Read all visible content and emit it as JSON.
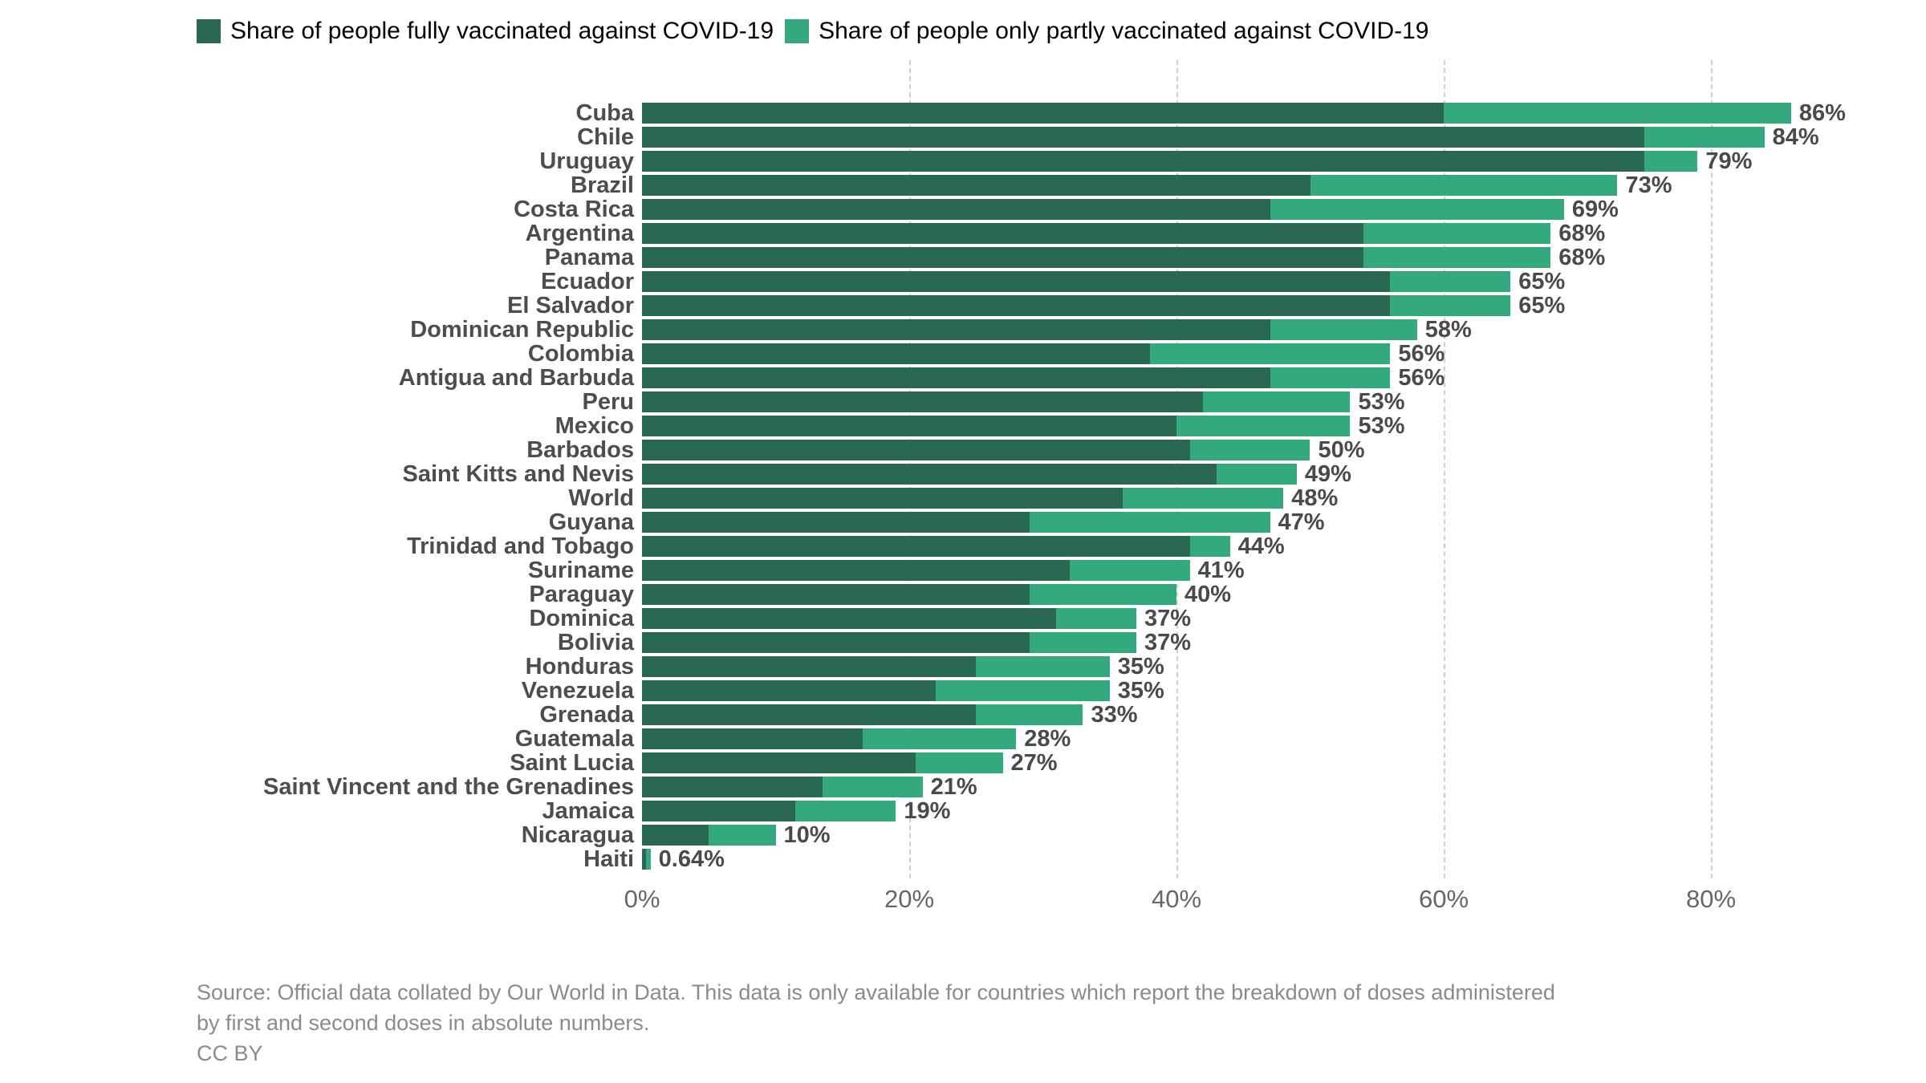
{
  "legend": {
    "fully_label": "Share of people fully vaccinated against COVID-19",
    "partly_label": "Share of people only partly vaccinated against COVID-19"
  },
  "colors": {
    "fully": "#2b6852",
    "partly": "#35a97e",
    "grid": "#cfcfcf",
    "country_label": "#4d4d4d",
    "value_label": "#4a4a4a",
    "axis_label": "#666666",
    "source_text": "#8b8b8b",
    "legend_text": "#000000"
  },
  "axis": {
    "ticks": [
      {
        "value": 0,
        "label": "0%"
      },
      {
        "value": 20,
        "label": "20%"
      },
      {
        "value": 40,
        "label": "40%"
      },
      {
        "value": 60,
        "label": "60%"
      },
      {
        "value": 80,
        "label": "80%"
      }
    ],
    "gridline_values": [
      20,
      40,
      60,
      80
    ]
  },
  "source": {
    "line1": "Source: Official data collated by Our World in Data. This data is only available for countries which report the breakdown of doses administered",
    "line2": "by first and second doses in absolute numbers.",
    "line3": "CC BY"
  },
  "chart_data": {
    "type": "bar",
    "orientation": "horizontal",
    "stacked": true,
    "grid": "dashed-vertical",
    "legend_position": "top",
    "x_range": [
      0,
      96
    ],
    "categories": [
      "Cuba",
      "Chile",
      "Uruguay",
      "Brazil",
      "Costa Rica",
      "Argentina",
      "Panama",
      "Ecuador",
      "El Salvador",
      "Dominican Republic",
      "Colombia",
      "Antigua and Barbuda",
      "Peru",
      "Mexico",
      "Barbados",
      "Saint Kitts and Nevis",
      "World",
      "Guyana",
      "Trinidad and Tobago",
      "Suriname",
      "Paraguay",
      "Dominica",
      "Bolivia",
      "Honduras",
      "Venezuela",
      "Grenada",
      "Guatemala",
      "Saint Lucia",
      "Saint Vincent and the Grenadines",
      "Jamaica",
      "Nicaragua",
      "Haiti"
    ],
    "series": [
      {
        "name": "Share of people fully vaccinated against COVID-19",
        "values": [
          60,
          75,
          75,
          50,
          47,
          54,
          54,
          56,
          56,
          47,
          38,
          47,
          42,
          40,
          41,
          43,
          36,
          29,
          41,
          32,
          29,
          31,
          29,
          25,
          22,
          25,
          16.5,
          20.5,
          13.5,
          11.5,
          5,
          0.3
        ]
      },
      {
        "name": "Share of people only partly vaccinated against COVID-19",
        "values": [
          26,
          9,
          4,
          23,
          22,
          14,
          14,
          9,
          9,
          11,
          18,
          9,
          11,
          13,
          9,
          6,
          12,
          18,
          3,
          9,
          11,
          6,
          8,
          10,
          13,
          8,
          11.5,
          6.5,
          7.5,
          7.5,
          5,
          0.34
        ]
      }
    ],
    "total_labels": [
      "86%",
      "84%",
      "79%",
      "73%",
      "69%",
      "68%",
      "68%",
      "65%",
      "65%",
      "58%",
      "56%",
      "56%",
      "53%",
      "53%",
      "50%",
      "49%",
      "48%",
      "47%",
      "44%",
      "41%",
      "40%",
      "37%",
      "37%",
      "35%",
      "35%",
      "33%",
      "28%",
      "27%",
      "21%",
      "19%",
      "10%",
      "0.64%"
    ]
  }
}
